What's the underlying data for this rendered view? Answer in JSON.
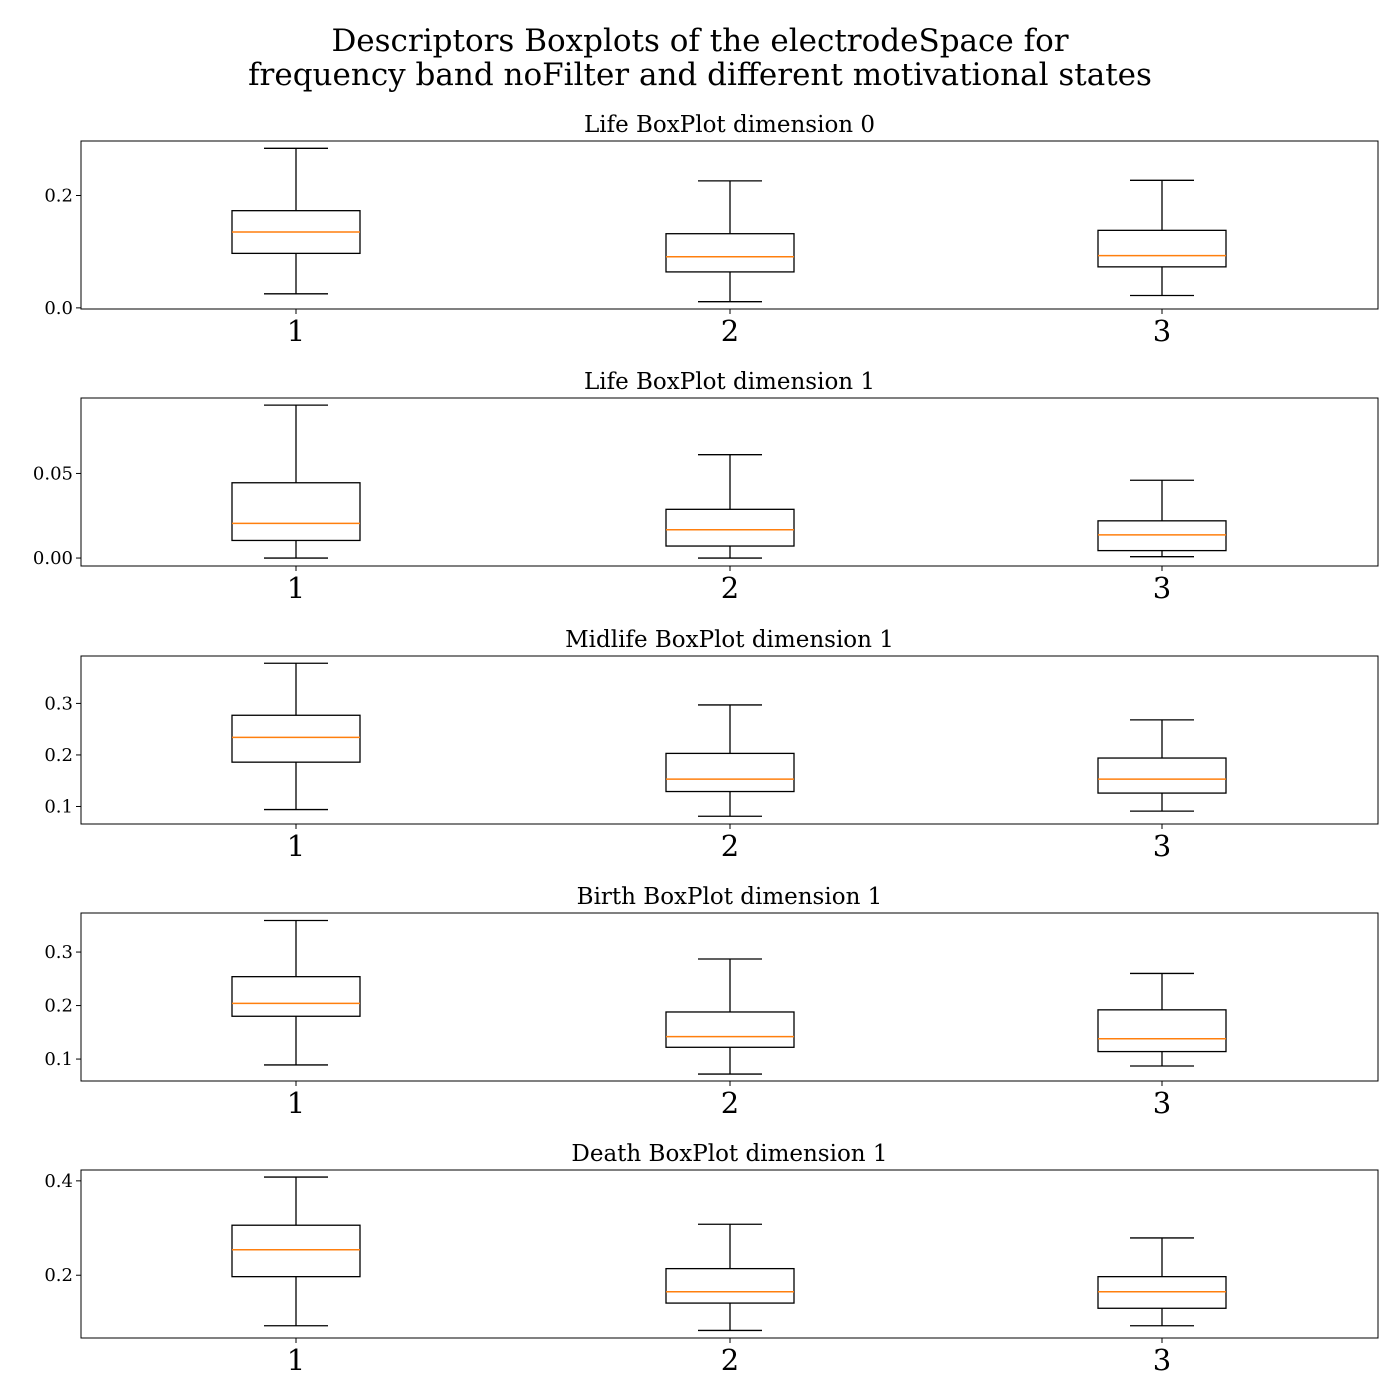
{
  "title": "Descriptors Boxplots of the electrodeSpace for\nfrequency band noFilter and different motivational states",
  "title_lines": [
    "Descriptors Boxplots of the electrodeSpace for",
    "frequency band noFilter and different motivational states"
  ],
  "colors": {
    "box": "#000000",
    "median": "#ff7f0e",
    "background": "#ffffff"
  },
  "chart_data": [
    {
      "type": "box",
      "title": "Life BoxPlot dimension 0",
      "categories": [
        "1",
        "2",
        "3"
      ],
      "ylim": [
        -0.002,
        0.297
      ],
      "yticks": [
        0.0,
        0.2
      ],
      "ytick_labels": [
        "0.0",
        "0.2"
      ],
      "boxes": [
        {
          "whislo": 0.025,
          "q1": 0.097,
          "med": 0.135,
          "q3": 0.173,
          "whishi": 0.284
        },
        {
          "whislo": 0.011,
          "q1": 0.064,
          "med": 0.091,
          "q3": 0.132,
          "whishi": 0.226
        },
        {
          "whislo": 0.022,
          "q1": 0.073,
          "med": 0.093,
          "q3": 0.138,
          "whishi": 0.227
        }
      ]
    },
    {
      "type": "box",
      "title": "Life BoxPlot dimension 1",
      "categories": [
        "1",
        "2",
        "3"
      ],
      "ylim": [
        -0.0047,
        0.0946
      ],
      "yticks": [
        0.0,
        0.05
      ],
      "ytick_labels": [
        "0.00",
        "0.05"
      ],
      "boxes": [
        {
          "whislo": 0.0,
          "q1": 0.0104,
          "med": 0.0205,
          "q3": 0.0445,
          "whishi": 0.0904
        },
        {
          "whislo": 0.0,
          "q1": 0.0071,
          "med": 0.0167,
          "q3": 0.0288,
          "whishi": 0.0611
        },
        {
          "whislo": 0.0008,
          "q1": 0.0044,
          "med": 0.0137,
          "q3": 0.022,
          "whishi": 0.046
        }
      ]
    },
    {
      "type": "box",
      "title": "Midlife BoxPlot dimension 1",
      "categories": [
        "1",
        "2",
        "3"
      ],
      "ylim": [
        0.066,
        0.392
      ],
      "yticks": [
        0.1,
        0.2,
        0.3
      ],
      "ytick_labels": [
        "0.1",
        "0.2",
        "0.3"
      ],
      "boxes": [
        {
          "whislo": 0.094,
          "q1": 0.186,
          "med": 0.234,
          "q3": 0.277,
          "whishi": 0.378
        },
        {
          "whislo": 0.081,
          "q1": 0.129,
          "med": 0.153,
          "q3": 0.203,
          "whishi": 0.297
        },
        {
          "whislo": 0.091,
          "q1": 0.126,
          "med": 0.153,
          "q3": 0.194,
          "whishi": 0.268
        }
      ]
    },
    {
      "type": "box",
      "title": "Birth BoxPlot dimension 1",
      "categories": [
        "1",
        "2",
        "3"
      ],
      "ylim": [
        0.059,
        0.373
      ],
      "yticks": [
        0.1,
        0.2,
        0.3
      ],
      "ytick_labels": [
        "0.1",
        "0.2",
        "0.3"
      ],
      "boxes": [
        {
          "whislo": 0.089,
          "q1": 0.18,
          "med": 0.204,
          "q3": 0.254,
          "whishi": 0.359
        },
        {
          "whislo": 0.072,
          "q1": 0.122,
          "med": 0.142,
          "q3": 0.188,
          "whishi": 0.287
        },
        {
          "whislo": 0.087,
          "q1": 0.114,
          "med": 0.138,
          "q3": 0.192,
          "whishi": 0.26
        }
      ]
    },
    {
      "type": "box",
      "title": "Death BoxPlot dimension 1",
      "categories": [
        "1",
        "2",
        "3"
      ],
      "ylim": [
        0.067,
        0.423
      ],
      "yticks": [
        0.2,
        0.4
      ],
      "ytick_labels": [
        "0.2",
        "0.4"
      ],
      "boxes": [
        {
          "whislo": 0.093,
          "q1": 0.197,
          "med": 0.254,
          "q3": 0.306,
          "whishi": 0.408
        },
        {
          "whislo": 0.083,
          "q1": 0.141,
          "med": 0.165,
          "q3": 0.214,
          "whishi": 0.308
        },
        {
          "whislo": 0.093,
          "q1": 0.13,
          "med": 0.165,
          "q3": 0.197,
          "whishi": 0.279
        }
      ]
    }
  ]
}
